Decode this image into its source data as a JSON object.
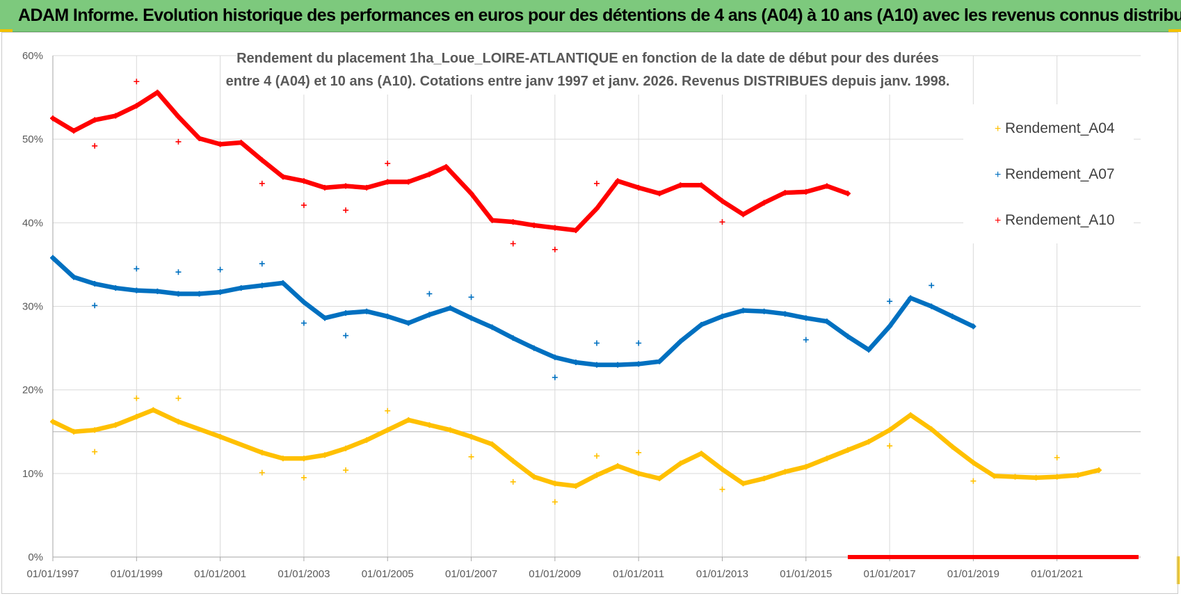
{
  "banner": {
    "title": "ADAM Informe. Evolution historique des performances en euros pour des détentions de 4 ans (A04) à 10 ans (A10) avec les revenus connus distribués"
  },
  "colors": {
    "banner_bg": "#7dc97d",
    "a04": "#ffc000",
    "a07": "#0070c0",
    "a10": "#ff0000",
    "grid": "#d9d9d9",
    "text": "#595959"
  },
  "chart_data": {
    "type": "scatter",
    "title_lines": [
      "Rendement du placement 1ha_Loue_LOIRE-ATLANTIQUE en fonction de la date de début pour des durées",
      "entre 4 (A04) et 10 ans (A10).  Cotations entre janv 1997 et janv. 2026. Revenus DISTRIBUES depuis janv. 1998."
    ],
    "x_unit": "year",
    "xlim": [
      1997.0,
      2023.0
    ],
    "ylim": [
      0,
      60
    ],
    "y_ticks": [
      "0%",
      "10%",
      "20%",
      "30%",
      "40%",
      "50%",
      "60%"
    ],
    "x_ticks": [
      "01/01/1997",
      "01/01/1999",
      "01/01/2001",
      "01/01/2003",
      "01/01/2005",
      "01/01/2007",
      "01/01/2009",
      "01/01/2011",
      "01/01/2013",
      "01/01/2015",
      "01/01/2017",
      "01/01/2019",
      "01/01/2021"
    ],
    "x_tick_values": [
      1997,
      1999,
      2001,
      2003,
      2005,
      2007,
      2009,
      2011,
      2013,
      2015,
      2017,
      2019,
      2021
    ],
    "ref_line_y": 15,
    "legend": [
      "Rendement_A04",
      "Rendement_A07",
      "Rendement_A10"
    ],
    "series": [
      {
        "name": "Rendement_A04",
        "color": "#ffc000",
        "x": [
          1997.0,
          1997.5,
          1998.0,
          1998.5,
          1999.0,
          1999.4,
          2000.0,
          2001.0,
          2002.0,
          2002.5,
          2003.0,
          2003.5,
          2004.0,
          2004.5,
          2005.0,
          2005.5,
          2006.0,
          2006.5,
          2007.0,
          2007.5,
          2008.0,
          2008.5,
          2009.0,
          2009.5,
          2010.0,
          2010.5,
          2011.0,
          2011.5,
          2012.0,
          2012.5,
          2013.0,
          2013.5,
          2014.0,
          2014.5,
          2015.0,
          2015.5,
          2016.0,
          2016.5,
          2017.0,
          2017.5,
          2018.0,
          2018.5,
          2019.0,
          2019.5,
          2020.0,
          2020.5,
          2021.0,
          2021.5,
          2022.0
        ],
        "y": [
          16.2,
          15.0,
          15.2,
          15.8,
          16.8,
          17.6,
          16.2,
          14.4,
          12.5,
          11.8,
          11.8,
          12.2,
          13.0,
          14.0,
          15.2,
          16.4,
          15.8,
          15.2,
          14.4,
          13.5,
          11.5,
          9.6,
          8.8,
          8.5,
          9.8,
          10.9,
          10.0,
          9.4,
          11.2,
          12.4,
          10.5,
          8.8,
          9.4,
          10.2,
          10.8,
          11.8,
          12.8,
          13.8,
          15.2,
          17.0,
          15.3,
          13.2,
          11.3,
          9.7,
          9.6,
          9.5,
          9.6,
          9.8,
          10.4
        ]
      },
      {
        "name": "Rendement_A07",
        "color": "#0070c0",
        "x": [
          1997.0,
          1997.5,
          1998.0,
          1998.5,
          1999.0,
          1999.5,
          2000.0,
          2000.5,
          2001.0,
          2001.5,
          2002.0,
          2002.5,
          2003.0,
          2003.5,
          2004.0,
          2004.5,
          2005.0,
          2005.5,
          2006.0,
          2006.5,
          2007.0,
          2007.5,
          2008.0,
          2008.5,
          2009.0,
          2009.5,
          2010.0,
          2010.5,
          2011.0,
          2011.5,
          2012.0,
          2012.5,
          2013.0,
          2013.5,
          2014.0,
          2014.5,
          2015.0,
          2015.5,
          2016.0,
          2016.5,
          2017.0,
          2017.5,
          2018.0,
          2018.5,
          2019.0
        ],
        "y": [
          35.8,
          33.5,
          32.7,
          32.2,
          31.9,
          31.8,
          31.5,
          31.5,
          31.7,
          32.2,
          32.5,
          32.8,
          30.5,
          28.6,
          29.2,
          29.4,
          28.8,
          28.0,
          29.0,
          29.8,
          28.6,
          27.5,
          26.2,
          25.0,
          23.9,
          23.3,
          23.0,
          23.0,
          23.1,
          23.4,
          25.8,
          27.8,
          28.8,
          29.5,
          29.4,
          29.1,
          28.6,
          28.2,
          26.4,
          24.8,
          27.6,
          31.0,
          30.0,
          28.8,
          27.6
        ]
      },
      {
        "name": "Rendement_A10",
        "color": "#ff0000",
        "x": [
          1997.0,
          1997.5,
          1998.0,
          1998.5,
          1999.0,
          1999.5,
          2000.0,
          2000.5,
          2001.0,
          2001.5,
          2002.0,
          2002.5,
          2003.0,
          2003.5,
          2004.0,
          2004.5,
          2005.0,
          2005.5,
          2006.0,
          2006.4,
          2007.0,
          2007.5,
          2008.0,
          2008.5,
          2009.0,
          2009.5,
          2010.0,
          2010.5,
          2011.0,
          2011.5,
          2012.0,
          2012.5,
          2013.0,
          2013.5,
          2014.0,
          2014.5,
          2015.0,
          2015.5,
          2016.0
        ],
        "y": [
          52.5,
          51.0,
          52.3,
          52.8,
          54.0,
          55.6,
          52.7,
          50.1,
          49.4,
          49.6,
          47.5,
          45.5,
          45.0,
          44.2,
          44.4,
          44.2,
          44.9,
          44.9,
          45.8,
          46.7,
          43.5,
          40.3,
          40.1,
          39.7,
          39.4,
          39.1,
          41.7,
          45.0,
          44.2,
          43.5,
          44.5,
          44.5,
          42.6,
          41.0,
          42.4,
          43.6,
          43.7,
          44.4,
          43.5
        ]
      }
    ],
    "outliers": [
      {
        "series": "Rendement_A04",
        "x": [
          1998.0,
          1999.0,
          2000.0,
          2002.0,
          2003.0,
          2004.0,
          2005.0,
          2007.0,
          2008.0,
          2009.0,
          2010.0,
          2011.0,
          2013.0,
          2017.0,
          2019.0,
          2021.0
        ],
        "y": [
          12.6,
          19.0,
          19.0,
          10.1,
          9.5,
          10.4,
          17.5,
          12.0,
          9.0,
          6.6,
          12.1,
          12.5,
          8.1,
          13.3,
          9.1,
          11.9
        ]
      },
      {
        "series": "Rendement_A07",
        "x": [
          1998.0,
          1999.0,
          2000.0,
          2001.0,
          2002.0,
          2003.0,
          2004.0,
          2006.0,
          2007.0,
          2009.0,
          2010.0,
          2011.0,
          2015.0,
          2017.0,
          2018.0
        ],
        "y": [
          30.1,
          34.5,
          34.1,
          34.4,
          35.1,
          28.0,
          26.5,
          31.5,
          31.1,
          21.5,
          25.6,
          25.6,
          26.0,
          30.6,
          32.5
        ]
      },
      {
        "series": "Rendement_A10",
        "x": [
          1998.0,
          1999.0,
          2000.0,
          2002.0,
          2003.0,
          2004.0,
          2005.0,
          2008.0,
          2009.0,
          2010.0,
          2013.0
        ],
        "y": [
          49.2,
          56.9,
          49.7,
          44.7,
          42.1,
          41.5,
          47.1,
          37.5,
          36.8,
          44.7,
          40.1
        ]
      }
    ],
    "zero_band": {
      "series": "Rendement_A10",
      "x_start": 2016.0,
      "x_end": 2022.95,
      "y": 0
    }
  }
}
